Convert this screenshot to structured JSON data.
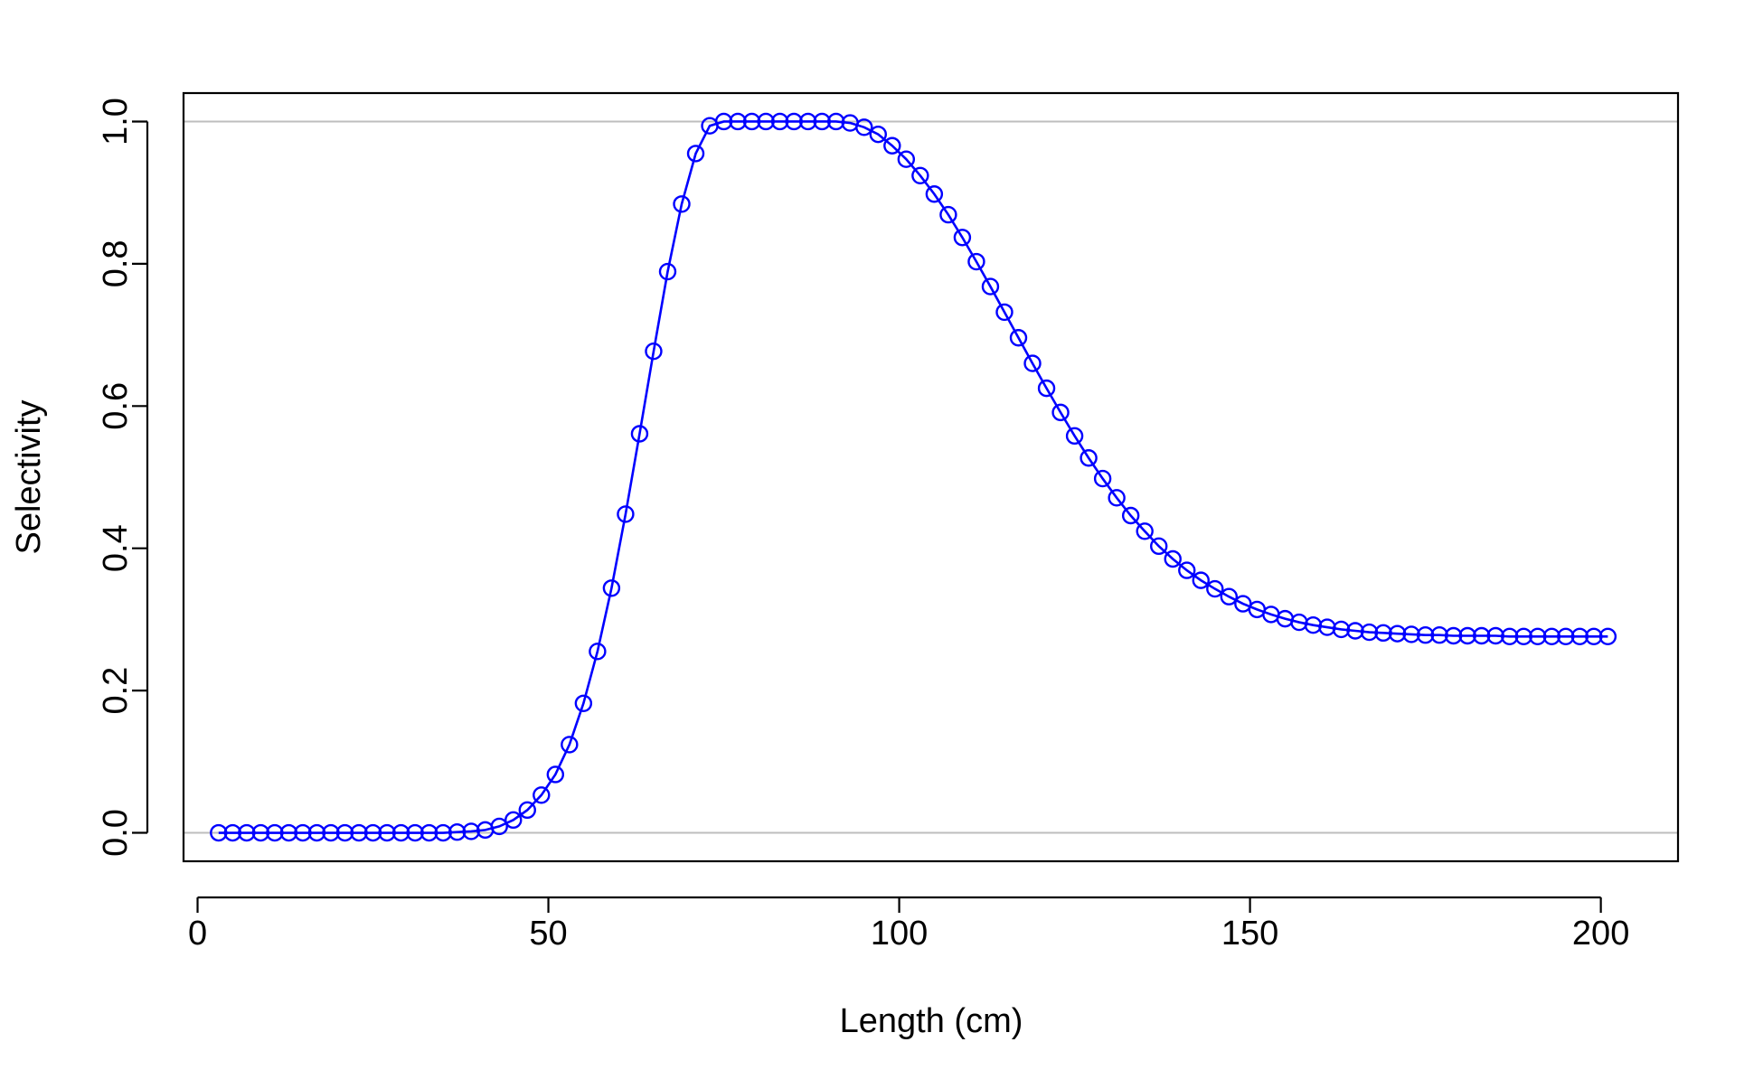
{
  "colors": {
    "series": "#0000ff",
    "reference_lines": "#bebebe",
    "axes": "#000000",
    "background": "#ffffff"
  },
  "chart_data": {
    "type": "line",
    "markers": "open-circle",
    "title": "",
    "xlabel": "Length (cm)",
    "ylabel": "Selectivity",
    "xlim": [
      -2,
      211
    ],
    "ylim": [
      -0.04,
      1.04
    ],
    "xticks": [
      0,
      50,
      100,
      150,
      200
    ],
    "xtick_labels": [
      "0",
      "50",
      "100",
      "150",
      "200"
    ],
    "yticks": [
      0.0,
      0.2,
      0.4,
      0.6,
      0.8,
      1.0
    ],
    "ytick_labels": [
      "0.0",
      "0.2",
      "0.4",
      "0.6",
      "0.8",
      "1.0"
    ],
    "reference_lines_y": [
      0,
      1
    ],
    "grid": false,
    "legend": "none",
    "x": [
      3,
      5,
      7,
      9,
      11,
      13,
      15,
      17,
      19,
      21,
      23,
      25,
      27,
      29,
      31,
      33,
      35,
      37,
      39,
      41,
      43,
      45,
      47,
      49,
      51,
      53,
      55,
      57,
      59,
      61,
      63,
      65,
      67,
      69,
      71,
      73,
      75,
      77,
      79,
      81,
      83,
      85,
      87,
      89,
      91,
      93,
      95,
      97,
      99,
      101,
      103,
      105,
      107,
      109,
      111,
      113,
      115,
      117,
      119,
      121,
      123,
      125,
      127,
      129,
      131,
      133,
      135,
      137,
      139,
      141,
      143,
      145,
      147,
      149,
      151,
      153,
      155,
      157,
      159,
      161,
      163,
      165,
      167,
      169,
      171,
      173,
      175,
      177,
      179,
      181,
      183,
      185,
      187,
      189,
      191,
      193,
      195,
      197,
      199,
      201
    ],
    "y": [
      0.0,
      0.0,
      0.0,
      0.0,
      0.0,
      0.0,
      0.0,
      0.0,
      0.0,
      0.0,
      0.0,
      0.0,
      0.0,
      0.0,
      0.0,
      0.0,
      0.0,
      0.001,
      0.002,
      0.004,
      0.009,
      0.018,
      0.032,
      0.053,
      0.082,
      0.124,
      0.182,
      0.255,
      0.344,
      0.448,
      0.561,
      0.677,
      0.789,
      0.884,
      0.955,
      0.994,
      1.0,
      1.0,
      1.0,
      1.0,
      1.0,
      1.0,
      1.0,
      1.0,
      1.0,
      0.998,
      0.992,
      0.982,
      0.966,
      0.947,
      0.924,
      0.898,
      0.869,
      0.837,
      0.803,
      0.768,
      0.732,
      0.696,
      0.66,
      0.625,
      0.591,
      0.558,
      0.527,
      0.498,
      0.471,
      0.446,
      0.424,
      0.403,
      0.385,
      0.369,
      0.355,
      0.343,
      0.332,
      0.322,
      0.314,
      0.307,
      0.301,
      0.296,
      0.292,
      0.289,
      0.286,
      0.284,
      0.282,
      0.281,
      0.28,
      0.279,
      0.278,
      0.278,
      0.277,
      0.277,
      0.277,
      0.277,
      0.276,
      0.276,
      0.276,
      0.276,
      0.276,
      0.276,
      0.276,
      0.276
    ]
  }
}
